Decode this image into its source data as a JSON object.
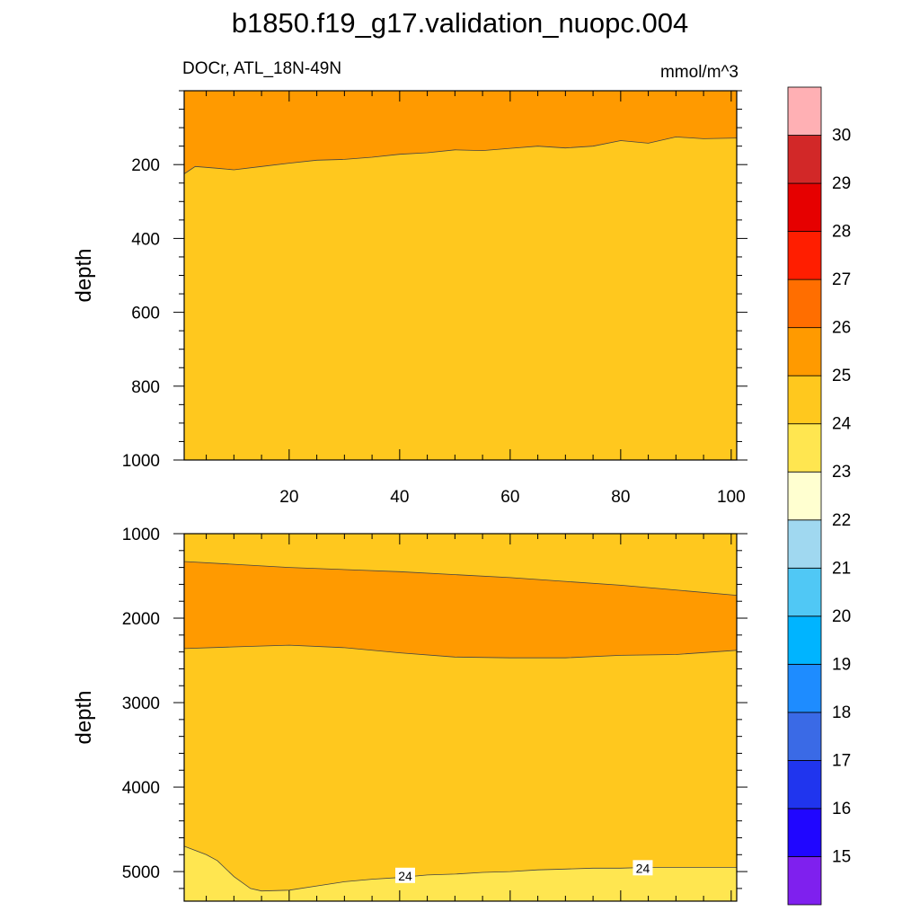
{
  "title": "b1850.f19_g17.validation_nuopc.004",
  "left_label": "DOCr, ATL_18N-49N",
  "right_label": "mmol/m^3",
  "chart_data": [
    {
      "type": "contour",
      "panel": "upper",
      "ylabel": "depth",
      "xlim": [
        1,
        101
      ],
      "ylim": [
        1000,
        0
      ],
      "xticks": [
        20,
        40,
        60,
        80,
        100
      ],
      "yticks": [
        200,
        400,
        600,
        800,
        1000
      ],
      "regions": [
        {
          "range": "25-26",
          "color": "#ff9a00",
          "upper": 0,
          "lower": "boundary"
        },
        {
          "range": "24-25",
          "color": "#ffc81e",
          "upper": "boundary",
          "lower": 1000
        }
      ],
      "boundary_25": {
        "x": [
          1,
          3,
          7,
          10,
          15,
          20,
          25,
          30,
          35,
          40,
          45,
          50,
          55,
          60,
          65,
          70,
          75,
          80,
          85,
          90,
          95,
          101
        ],
        "y": [
          225,
          205,
          210,
          214,
          205,
          196,
          188,
          186,
          180,
          172,
          168,
          160,
          162,
          156,
          150,
          155,
          150,
          135,
          142,
          125,
          130,
          128
        ]
      }
    },
    {
      "type": "contour",
      "panel": "lower",
      "ylabel": "depth",
      "xlim": [
        1,
        101
      ],
      "ylim": [
        5350,
        1000
      ],
      "yticks": [
        1000,
        2000,
        3000,
        4000,
        5000
      ],
      "regions": [
        {
          "range": "24-25",
          "color": "#ffc81e"
        },
        {
          "range": "25-26",
          "color": "#ff9a00"
        },
        {
          "range": "23-24",
          "color": "#ffe650"
        }
      ],
      "boundary_25_top": {
        "x": [
          1,
          20,
          40,
          60,
          80,
          101
        ],
        "y": [
          1330,
          1400,
          1450,
          1520,
          1610,
          1730
        ]
      },
      "boundary_25_bottom": {
        "x": [
          1,
          10,
          20,
          30,
          40,
          50,
          60,
          70,
          80,
          90,
          101
        ],
        "y": [
          2360,
          2340,
          2320,
          2350,
          2410,
          2460,
          2470,
          2470,
          2440,
          2430,
          2380
        ]
      },
      "boundary_24_bottom": {
        "x": [
          1,
          5,
          7,
          10,
          13,
          15,
          20,
          25,
          30,
          35,
          40,
          45,
          50,
          55,
          60,
          65,
          70,
          75,
          80,
          85,
          90,
          95,
          101
        ],
        "y": [
          4700,
          4800,
          4870,
          5060,
          5200,
          5230,
          5220,
          5170,
          5120,
          5090,
          5070,
          5040,
          5030,
          5010,
          5000,
          4980,
          4970,
          4960,
          4960,
          4950,
          4950,
          4950,
          4950
        ]
      },
      "contour_labels": [
        {
          "text": "24",
          "x": 41,
          "y": 5050
        },
        {
          "text": "24",
          "x": 84,
          "y": 4960
        }
      ]
    }
  ],
  "colorbar": {
    "levels": [
      "15",
      "16",
      "17",
      "18",
      "19",
      "20",
      "21",
      "22",
      "23",
      "24",
      "25",
      "26",
      "27",
      "28",
      "29",
      "30"
    ],
    "colors": [
      "#a0e632",
      "#7f20ee",
      "#2006ff",
      "#2035ee",
      "#3a6ae6",
      "#1e8cff",
      "#00b4ff",
      "#50c8f5",
      "#a0d8f0",
      "#ffffd0",
      "#ffe650",
      "#ffc81e",
      "#ff9a00",
      "#ff6e00",
      "#ff1e00",
      "#e60000",
      "#d22828",
      "#ffb0b4"
    ]
  }
}
